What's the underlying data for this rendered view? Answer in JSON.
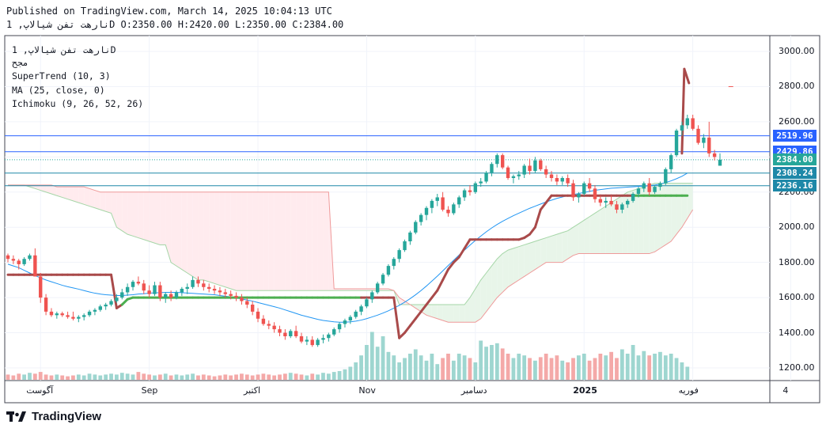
{
  "header": {
    "line1": "Published on TradingView.com, March 14, 2025 10:04:13 UTC",
    "line2": "نارهت تفن شیالاپ, 1D O:2350.00 H:2420.00 L:2350.00 C:2384.00"
  },
  "legend": {
    "symbol": "نارهت تفن شیالاپ, 1D",
    "exchange": "مجح",
    "supertrend": "SuperTrend (10, 3)",
    "ma": "MA (25, close, 0)",
    "ichimoku": "Ichimoku (9, 26, 52, 26)"
  },
  "brand": {
    "name": "TradingView"
  },
  "colors": {
    "up": "#26a69a",
    "down": "#ef5350",
    "supertrend_up": "#4caf50",
    "supertrend_down": "#a94a4a",
    "ma": "#2196f3",
    "cloud_bull": "#e8f5e9",
    "cloud_bear": "#ffebee",
    "price_line": "#2962ff"
  },
  "chart_data": {
    "type": "candlestick",
    "title": "",
    "ylim": [
      1100,
      3100
    ],
    "yticks": [
      "3000.00",
      "2800.00",
      "2600.00",
      "2400.00",
      "2200.00",
      "2000.00",
      "1800.00",
      "1600.00",
      "1400.00",
      "1200.00"
    ],
    "yticks_values": [
      3000,
      2800,
      2600,
      2400,
      2200,
      2000,
      1800,
      1600,
      1400,
      1200
    ],
    "xticks": [
      "آگوست",
      "Sep",
      "اکتبر",
      "Nov",
      "دسامبر",
      "2025",
      "فوریه",
      "4"
    ],
    "xticks_index": [
      6,
      26,
      46,
      66,
      86,
      106,
      126,
      144
    ],
    "price_labels": [
      {
        "text": "2519.96",
        "value": 2519.96,
        "color": "#2962ff"
      },
      {
        "text": "2429.86",
        "value": 2429.86,
        "color": "#2962ff"
      },
      {
        "text": "2384.00",
        "value": 2384.0,
        "color": "#26a69a"
      },
      {
        "text": "2308.24",
        "value": 2308.24,
        "color": "#1e88a8"
      },
      {
        "text": "2236.16",
        "value": 2236.16,
        "color": "#1e88a8"
      }
    ],
    "candles": [
      [
        1840,
        1850,
        1800,
        1820
      ],
      [
        1820,
        1840,
        1790,
        1810
      ],
      [
        1810,
        1820,
        1760,
        1790
      ],
      [
        1790,
        1830,
        1780,
        1820
      ],
      [
        1820,
        1850,
        1810,
        1840
      ],
      [
        1840,
        1880,
        1720,
        1720
      ],
      [
        1720,
        1740,
        1570,
        1600
      ],
      [
        1600,
        1620,
        1500,
        1520
      ],
      [
        1520,
        1540,
        1490,
        1500
      ],
      [
        1500,
        1520,
        1480,
        1510
      ],
      [
        1510,
        1520,
        1490,
        1500
      ],
      [
        1500,
        1520,
        1480,
        1490
      ],
      [
        1490,
        1520,
        1470,
        1480
      ],
      [
        1480,
        1500,
        1460,
        1490
      ],
      [
        1490,
        1510,
        1470,
        1500
      ],
      [
        1500,
        1530,
        1490,
        1520
      ],
      [
        1520,
        1540,
        1500,
        1530
      ],
      [
        1530,
        1560,
        1520,
        1550
      ],
      [
        1550,
        1570,
        1530,
        1560
      ],
      [
        1560,
        1590,
        1550,
        1580
      ],
      [
        1580,
        1620,
        1570,
        1600
      ],
      [
        1600,
        1650,
        1590,
        1630
      ],
      [
        1630,
        1680,
        1610,
        1660
      ],
      [
        1660,
        1700,
        1640,
        1690
      ],
      [
        1690,
        1720,
        1670,
        1680
      ],
      [
        1680,
        1700,
        1620,
        1640
      ],
      [
        1640,
        1670,
        1600,
        1620
      ],
      [
        1620,
        1690,
        1610,
        1670
      ],
      [
        1670,
        1690,
        1580,
        1600
      ],
      [
        1600,
        1630,
        1570,
        1620
      ],
      [
        1620,
        1640,
        1580,
        1600
      ],
      [
        1600,
        1640,
        1590,
        1630
      ],
      [
        1630,
        1660,
        1610,
        1650
      ],
      [
        1650,
        1680,
        1620,
        1660
      ],
      [
        1660,
        1720,
        1650,
        1700
      ],
      [
        1700,
        1720,
        1660,
        1680
      ],
      [
        1680,
        1700,
        1640,
        1660
      ],
      [
        1660,
        1680,
        1630,
        1650
      ],
      [
        1650,
        1670,
        1620,
        1640
      ],
      [
        1640,
        1660,
        1610,
        1630
      ],
      [
        1630,
        1650,
        1600,
        1620
      ],
      [
        1620,
        1640,
        1590,
        1610
      ],
      [
        1610,
        1630,
        1580,
        1600
      ],
      [
        1600,
        1620,
        1560,
        1580
      ],
      [
        1580,
        1600,
        1540,
        1560
      ],
      [
        1560,
        1580,
        1500,
        1520
      ],
      [
        1520,
        1540,
        1460,
        1480
      ],
      [
        1480,
        1500,
        1440,
        1450
      ],
      [
        1450,
        1470,
        1420,
        1440
      ],
      [
        1440,
        1460,
        1400,
        1420
      ],
      [
        1420,
        1440,
        1380,
        1400
      ],
      [
        1400,
        1420,
        1360,
        1380
      ],
      [
        1380,
        1420,
        1370,
        1410
      ],
      [
        1410,
        1440,
        1370,
        1380
      ],
      [
        1380,
        1400,
        1340,
        1350
      ],
      [
        1350,
        1380,
        1330,
        1360
      ],
      [
        1360,
        1380,
        1320,
        1330
      ],
      [
        1330,
        1370,
        1320,
        1360
      ],
      [
        1360,
        1390,
        1340,
        1370
      ],
      [
        1370,
        1400,
        1350,
        1390
      ],
      [
        1390,
        1430,
        1380,
        1420
      ],
      [
        1420,
        1460,
        1400,
        1450
      ],
      [
        1450,
        1480,
        1430,
        1470
      ],
      [
        1470,
        1500,
        1450,
        1490
      ],
      [
        1490,
        1530,
        1480,
        1520
      ],
      [
        1520,
        1560,
        1500,
        1550
      ],
      [
        1550,
        1600,
        1540,
        1590
      ],
      [
        1590,
        1640,
        1570,
        1630
      ],
      [
        1630,
        1690,
        1620,
        1680
      ],
      [
        1680,
        1740,
        1670,
        1730
      ],
      [
        1730,
        1790,
        1720,
        1780
      ],
      [
        1780,
        1830,
        1760,
        1820
      ],
      [
        1820,
        1880,
        1800,
        1870
      ],
      [
        1870,
        1930,
        1860,
        1920
      ],
      [
        1920,
        1980,
        1900,
        1970
      ],
      [
        1970,
        2040,
        1960,
        2030
      ],
      [
        2030,
        2080,
        2010,
        2070
      ],
      [
        2070,
        2120,
        2040,
        2110
      ],
      [
        2110,
        2160,
        2080,
        2150
      ],
      [
        2150,
        2190,
        2120,
        2170
      ],
      [
        2170,
        2200,
        2090,
        2100
      ],
      [
        2100,
        2120,
        2060,
        2080
      ],
      [
        2080,
        2140,
        2070,
        2130
      ],
      [
        2130,
        2180,
        2110,
        2170
      ],
      [
        2170,
        2220,
        2150,
        2210
      ],
      [
        2210,
        2240,
        2180,
        2200
      ],
      [
        2200,
        2260,
        2190,
        2250
      ],
      [
        2250,
        2280,
        2230,
        2260
      ],
      [
        2260,
        2320,
        2250,
        2310
      ],
      [
        2310,
        2370,
        2290,
        2360
      ],
      [
        2360,
        2420,
        2340,
        2410
      ],
      [
        2410,
        2420,
        2330,
        2340
      ],
      [
        2340,
        2350,
        2270,
        2280
      ],
      [
        2280,
        2300,
        2250,
        2290
      ],
      [
        2290,
        2320,
        2270,
        2300
      ],
      [
        2300,
        2360,
        2280,
        2350
      ],
      [
        2350,
        2390,
        2300,
        2320
      ],
      [
        2320,
        2400,
        2310,
        2380
      ],
      [
        2380,
        2390,
        2320,
        2330
      ],
      [
        2330,
        2350,
        2280,
        2300
      ],
      [
        2300,
        2320,
        2260,
        2280
      ],
      [
        2280,
        2300,
        2240,
        2260
      ],
      [
        2260,
        2290,
        2240,
        2280
      ],
      [
        2280,
        2300,
        2230,
        2250
      ],
      [
        2250,
        2270,
        2150,
        2170
      ],
      [
        2170,
        2200,
        2140,
        2190
      ],
      [
        2190,
        2260,
        2180,
        2250
      ],
      [
        2250,
        2280,
        2200,
        2220
      ],
      [
        2220,
        2240,
        2140,
        2160
      ],
      [
        2160,
        2180,
        2120,
        2140
      ],
      [
        2140,
        2170,
        2110,
        2150
      ],
      [
        2150,
        2180,
        2120,
        2130
      ],
      [
        2130,
        2150,
        2080,
        2100
      ],
      [
        2100,
        2140,
        2080,
        2130
      ],
      [
        2130,
        2160,
        2110,
        2150
      ],
      [
        2150,
        2200,
        2140,
        2190
      ],
      [
        2190,
        2230,
        2170,
        2220
      ],
      [
        2220,
        2260,
        2200,
        2250
      ],
      [
        2250,
        2280,
        2180,
        2200
      ],
      [
        2200,
        2240,
        2190,
        2230
      ],
      [
        2230,
        2260,
        2210,
        2250
      ],
      [
        2250,
        2340,
        2240,
        2330
      ],
      [
        2330,
        2420,
        2310,
        2410
      ],
      [
        2410,
        2560,
        2400,
        2550
      ],
      [
        2550,
        2600,
        2520,
        2580
      ],
      [
        2580,
        2640,
        2560,
        2620
      ],
      [
        2620,
        2640,
        2550,
        2560
      ],
      [
        2560,
        2580,
        2470,
        2480
      ],
      [
        2480,
        2530,
        2450,
        2510
      ],
      [
        2510,
        2600,
        2400,
        2420
      ],
      [
        2420,
        2440,
        2380,
        2400
      ],
      [
        2350,
        2420,
        2350,
        2384
      ]
    ],
    "volume": [
      0.06,
      0.05,
      0.07,
      0.06,
      0.08,
      0.07,
      0.09,
      0.06,
      0.05,
      0.06,
      0.05,
      0.04,
      0.05,
      0.06,
      0.05,
      0.07,
      0.06,
      0.05,
      0.06,
      0.07,
      0.06,
      0.08,
      0.07,
      0.06,
      0.09,
      0.07,
      0.06,
      0.05,
      0.06,
      0.07,
      0.05,
      0.06,
      0.05,
      0.06,
      0.07,
      0.05,
      0.06,
      0.05,
      0.04,
      0.05,
      0.06,
      0.05,
      0.06,
      0.07,
      0.06,
      0.05,
      0.06,
      0.07,
      0.06,
      0.05,
      0.06,
      0.07,
      0.08,
      0.07,
      0.06,
      0.05,
      0.07,
      0.06,
      0.08,
      0.07,
      0.09,
      0.1,
      0.12,
      0.15,
      0.2,
      0.28,
      0.4,
      0.55,
      0.38,
      0.5,
      0.32,
      0.28,
      0.2,
      0.25,
      0.3,
      0.35,
      0.28,
      0.22,
      0.3,
      0.18,
      0.25,
      0.3,
      0.22,
      0.3,
      0.28,
      0.25,
      0.2,
      0.45,
      0.38,
      0.4,
      0.42,
      0.36,
      0.3,
      0.25,
      0.3,
      0.28,
      0.25,
      0.22,
      0.26,
      0.3,
      0.25,
      0.28,
      0.22,
      0.2,
      0.25,
      0.28,
      0.3,
      0.22,
      0.25,
      0.3,
      0.28,
      0.32,
      0.25,
      0.35,
      0.3,
      0.4,
      0.28,
      0.33,
      0.28,
      0.3,
      0.32,
      0.28,
      0.3,
      0.25,
      0.2,
      0.15
    ],
    "supertrend": [
      1730,
      1730,
      1730,
      1730,
      1730,
      1730,
      1730,
      1730,
      1730,
      1730,
      1730,
      1730,
      1730,
      1730,
      1730,
      1730,
      1730,
      1730,
      1730,
      1730,
      1540,
      1560,
      1590,
      1600,
      1600,
      1600,
      1600,
      1600,
      1600,
      1600,
      1600,
      1600,
      1600,
      1600,
      1600,
      1600,
      1600,
      1600,
      1600,
      1600,
      1600,
      1600,
      1600,
      1600,
      1600,
      1600,
      1600,
      1600,
      1600,
      1600,
      1600,
      1600,
      1600,
      1600,
      1600,
      1600,
      1600,
      1600,
      1600,
      1600,
      1600,
      1600,
      1600,
      1600,
      1600,
      1600,
      1600,
      1600,
      1600,
      1600,
      1600,
      1600,
      1370,
      1400,
      1440,
      1480,
      1520,
      1560,
      1600,
      1640,
      1700,
      1760,
      1800,
      1830,
      1880,
      1930,
      1930,
      1930,
      1930,
      1930,
      1930,
      1930,
      1930,
      1930,
      1930,
      1940,
      1960,
      2000,
      2100,
      2140,
      2180,
      2180,
      2180,
      2180,
      2180,
      2180,
      2180,
      2180,
      2180,
      2180,
      2180,
      2180,
      2180,
      2180,
      2180,
      2180,
      2180,
      2180,
      2180,
      2180,
      2180,
      2180,
      2180,
      2180,
      2180,
      2180
    ],
    "supertrend_down_from": [
      0,
      21,
      65,
      115
    ],
    "ma": [
      1790,
      1780,
      1770,
      1755,
      1740,
      1725,
      1712,
      1700,
      1690,
      1680,
      1670,
      1662,
      1655,
      1648,
      1640,
      1632,
      1625,
      1620,
      1616,
      1614,
      1612,
      1612,
      1614,
      1616,
      1620,
      1622,
      1625,
      1627,
      1628,
      1630,
      1630,
      1630,
      1628,
      1626,
      1624,
      1622,
      1620,
      1618,
      1616,
      1612,
      1608,
      1604,
      1598,
      1592,
      1586,
      1580,
      1572,
      1564,
      1556,
      1548,
      1540,
      1530,
      1520,
      1510,
      1500,
      1492,
      1484,
      1476,
      1470,
      1466,
      1462,
      1460,
      1460,
      1462,
      1466,
      1472,
      1480,
      1490,
      1500,
      1512,
      1525,
      1540,
      1556,
      1574,
      1594,
      1616,
      1640,
      1666,
      1694,
      1722,
      1752,
      1782,
      1812,
      1842,
      1870,
      1898,
      1925,
      1950,
      1974,
      1996,
      2016,
      2034,
      2050,
      2066,
      2080,
      2094,
      2108,
      2120,
      2132,
      2144,
      2154,
      2164,
      2172,
      2180,
      2186,
      2192,
      2198,
      2204,
      2210,
      2214,
      2218,
      2222,
      2224,
      2226,
      2228,
      2230,
      2232,
      2234,
      2236,
      2240,
      2246,
      2254,
      2264,
      2276,
      2290,
      2308
    ],
    "cloud_a": [
      2240,
      2240,
      2240,
      2240,
      2230,
      2220,
      2210,
      2200,
      2190,
      2180,
      2170,
      2160,
      2150,
      2140,
      2130,
      2120,
      2110,
      2100,
      2090,
      2080,
      2000,
      1980,
      1960,
      1950,
      1940,
      1930,
      1920,
      1910,
      1900,
      1900,
      1800,
      1780,
      1760,
      1740,
      1720,
      1700,
      1700,
      1690,
      1680,
      1670,
      1660,
      1650,
      1640,
      1640,
      1640,
      1640,
      1640,
      1640,
      1640,
      1640,
      1640,
      1640,
      1640,
      1640,
      1640,
      1640,
      1640,
      1640,
      1640,
      1640,
      1640,
      1640,
      1640,
      1640,
      1640,
      1640,
      1640,
      1640,
      1640,
      1640,
      1640,
      1640,
      1560,
      1560,
      1560,
      1560,
      1560,
      1560,
      1560,
      1560,
      1560,
      1560,
      1560,
      1560,
      1560,
      1600,
      1650,
      1700,
      1740,
      1780,
      1820,
      1850,
      1870,
      1880,
      1890,
      1900,
      1910,
      1920,
      1930,
      1940,
      1950,
      1960,
      1970,
      1980,
      2000,
      2020,
      2040,
      2060,
      2080,
      2100,
      2120,
      2140,
      2160,
      2180,
      2200,
      2210,
      2220,
      2230,
      2240,
      2250,
      2250,
      2250,
      2250,
      2250,
      2250,
      2250,
      2250
    ],
    "cloud_b": [
      2240,
      2240,
      2240,
      2240,
      2240,
      2240,
      2240,
      2240,
      2240,
      2230,
      2230,
      2230,
      2230,
      2230,
      2230,
      2220,
      2210,
      2200,
      2200,
      2200,
      2200,
      2200,
      2200,
      2200,
      2200,
      2200,
      2200,
      2200,
      2200,
      2200,
      2200,
      2200,
      2200,
      2200,
      2200,
      2200,
      2200,
      2200,
      2200,
      2200,
      2200,
      2200,
      2200,
      2200,
      2200,
      2200,
      2200,
      2200,
      2200,
      2200,
      2200,
      2200,
      2200,
      2200,
      2200,
      2200,
      2200,
      2200,
      2200,
      2200,
      1650,
      1650,
      1650,
      1650,
      1650,
      1650,
      1650,
      1650,
      1650,
      1650,
      1650,
      1640,
      1600,
      1580,
      1560,
      1540,
      1520,
      1500,
      1490,
      1480,
      1470,
      1460,
      1460,
      1460,
      1460,
      1460,
      1460,
      1480,
      1520,
      1560,
      1600,
      1630,
      1660,
      1680,
      1700,
      1720,
      1740,
      1760,
      1780,
      1800,
      1800,
      1800,
      1800,
      1820,
      1840,
      1850,
      1850,
      1850,
      1850,
      1850,
      1850,
      1850,
      1850,
      1850,
      1850,
      1850,
      1850,
      1850,
      1850,
      1860,
      1880,
      1900,
      1920,
      1960,
      2000,
      2050,
      2100
    ]
  }
}
